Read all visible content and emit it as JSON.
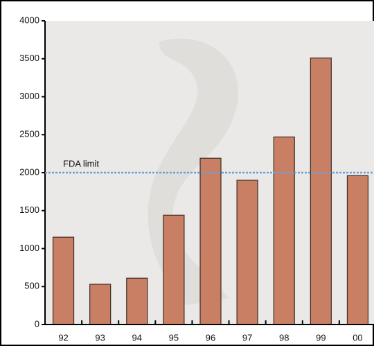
{
  "chart_data": {
    "type": "bar",
    "categories": [
      "92",
      "93",
      "94",
      "95",
      "96",
      "97",
      "98",
      "99",
      "00"
    ],
    "values": [
      1150,
      530,
      610,
      1440,
      2190,
      1900,
      2470,
      3510,
      1960
    ],
    "color": "#c97f63",
    "ylim": [
      0,
      4000
    ],
    "yticks": [
      0,
      500,
      1000,
      1500,
      2000,
      2500,
      3000,
      3500,
      4000
    ],
    "reference_line": {
      "value": 2000,
      "label": "FDA limit",
      "color": "#6f9fd8"
    }
  }
}
